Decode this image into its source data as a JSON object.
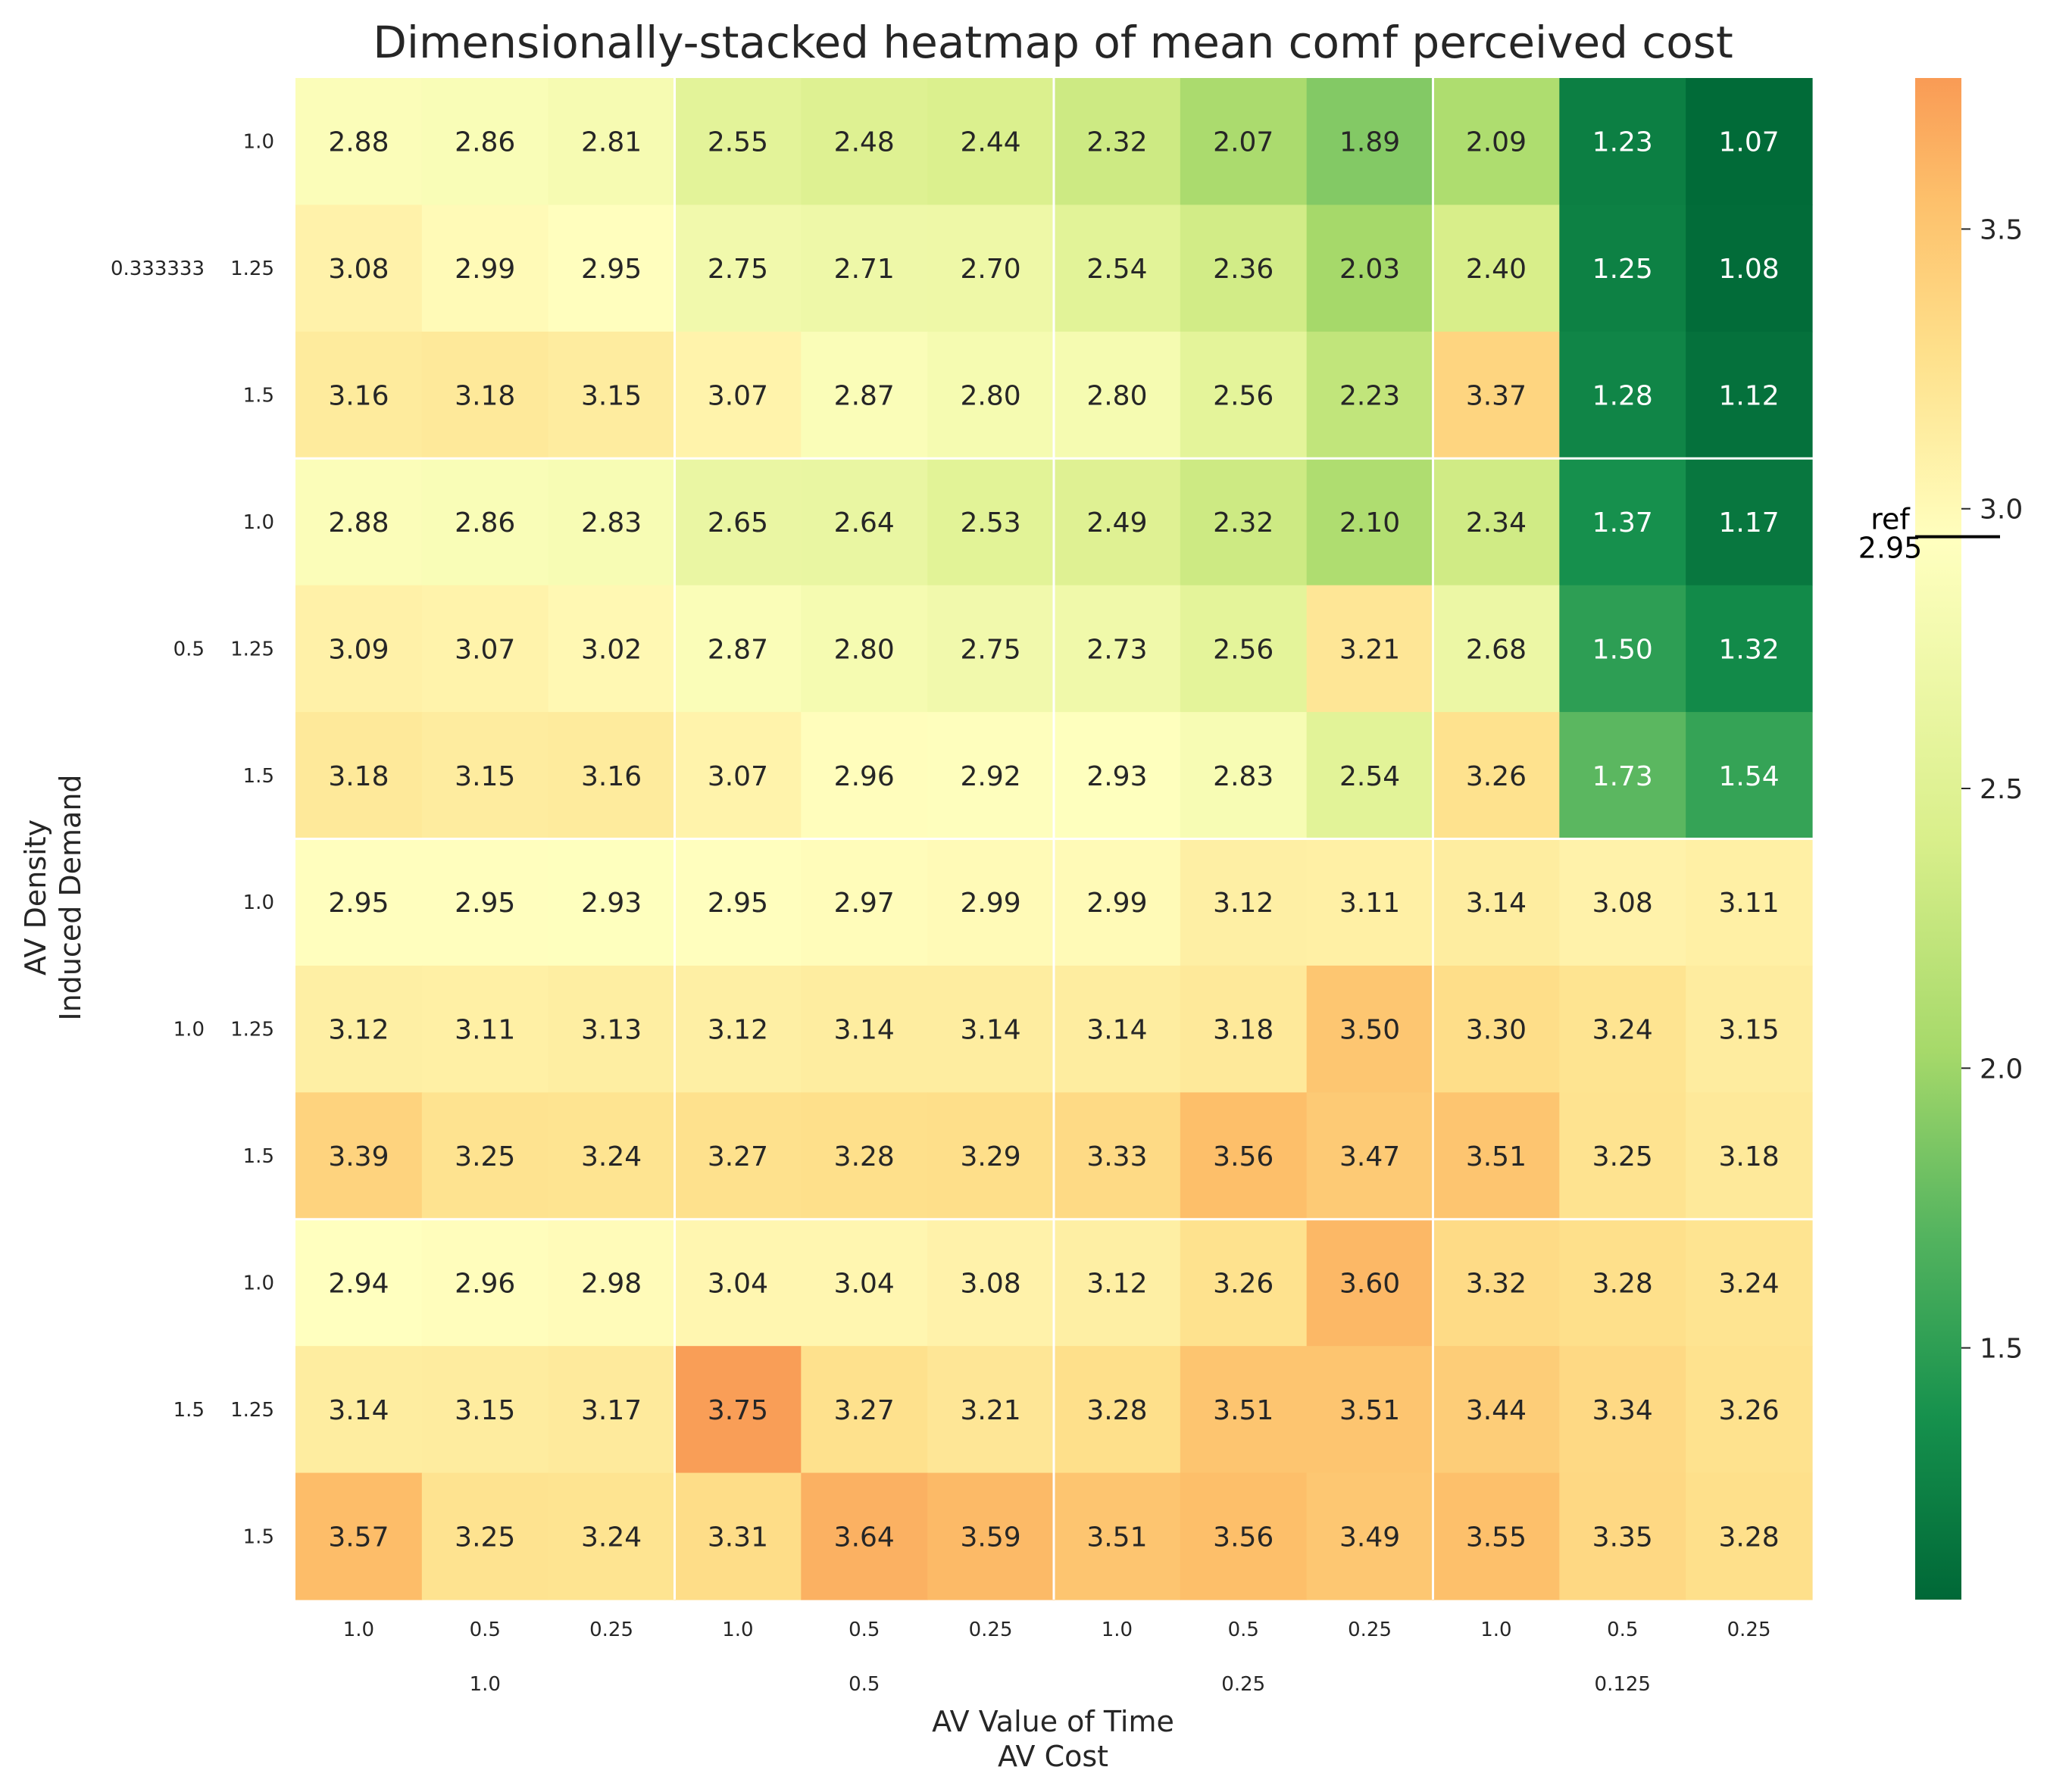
{
  "chart_data": {
    "type": "heatmap",
    "title": "Dimensionally-stacked heatmap of mean comf perceived cost",
    "xlabel": [
      "AV Value of Time",
      "AV Cost"
    ],
    "ylabel": [
      "AV Density",
      "Induced Demand"
    ],
    "x_outer_labels": [
      "1.0",
      "0.5",
      "0.25",
      "0.125"
    ],
    "x_inner_labels": [
      "1.0",
      "0.5",
      "0.25",
      "1.0",
      "0.5",
      "0.25",
      "1.0",
      "0.5",
      "0.25",
      "1.0",
      "0.5",
      "0.25"
    ],
    "y_outer_labels": [
      "0.333333",
      "0.5",
      "1.0",
      "1.5"
    ],
    "y_inner_labels": [
      "1.0",
      "1.25",
      "1.5",
      "1.0",
      "1.25",
      "1.5",
      "1.0",
      "1.25",
      "1.5",
      "1.0",
      "1.25",
      "1.5"
    ],
    "values": [
      [
        2.88,
        2.86,
        2.81,
        2.55,
        2.48,
        2.44,
        2.32,
        2.07,
        1.89,
        2.09,
        1.23,
        1.07
      ],
      [
        3.08,
        2.99,
        2.95,
        2.75,
        2.71,
        2.7,
        2.54,
        2.36,
        2.03,
        2.4,
        1.25,
        1.08
      ],
      [
        3.16,
        3.18,
        3.15,
        3.07,
        2.87,
        2.8,
        2.8,
        2.56,
        2.23,
        3.37,
        1.28,
        1.12
      ],
      [
        2.88,
        2.86,
        2.83,
        2.65,
        2.64,
        2.53,
        2.49,
        2.32,
        2.1,
        2.34,
        1.37,
        1.17
      ],
      [
        3.09,
        3.07,
        3.02,
        2.87,
        2.8,
        2.75,
        2.73,
        2.56,
        3.21,
        2.68,
        1.5,
        1.32
      ],
      [
        3.18,
        3.15,
        3.16,
        3.07,
        2.96,
        2.92,
        2.93,
        2.83,
        2.54,
        3.26,
        1.73,
        1.54
      ],
      [
        2.95,
        2.95,
        2.93,
        2.95,
        2.97,
        2.99,
        2.99,
        3.12,
        3.11,
        3.14,
        3.08,
        3.11
      ],
      [
        3.12,
        3.11,
        3.13,
        3.12,
        3.14,
        3.14,
        3.14,
        3.18,
        3.5,
        3.3,
        3.24,
        3.15
      ],
      [
        3.39,
        3.25,
        3.24,
        3.27,
        3.28,
        3.29,
        3.33,
        3.56,
        3.47,
        3.51,
        3.25,
        3.18
      ],
      [
        2.94,
        2.96,
        2.98,
        3.04,
        3.04,
        3.08,
        3.12,
        3.26,
        3.6,
        3.32,
        3.28,
        3.24
      ],
      [
        3.14,
        3.15,
        3.17,
        3.75,
        3.27,
        3.21,
        3.28,
        3.51,
        3.51,
        3.44,
        3.34,
        3.26
      ],
      [
        3.57,
        3.25,
        3.24,
        3.31,
        3.64,
        3.59,
        3.51,
        3.56,
        3.49,
        3.55,
        3.35,
        3.28
      ]
    ],
    "color_range": [
      1.05,
      3.77
    ],
    "colorscale": "RdYlGn reversed, centered at reference",
    "colorbar_ticks": [
      "1.5",
      "2.0",
      "2.5",
      "3.0",
      "3.5"
    ],
    "reference": {
      "label": "ref",
      "value": 2.95,
      "value_label": "2.95"
    },
    "colors": {
      "low": "#006837",
      "mid": "#ffffbf",
      "high": "#f99b55"
    }
  }
}
